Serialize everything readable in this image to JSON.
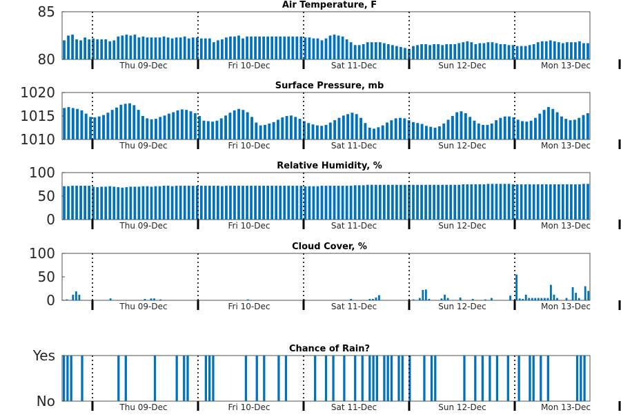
{
  "bar_color": "#0072bd",
  "day_labels": [
    "Thu 09-Dec",
    "Fri 10-Dec",
    "Sat 11-Dec",
    "Sun 12-Dec",
    "Mon 13-Dec"
  ],
  "chart_data": [
    {
      "type": "bar",
      "title": "Air Temperature, F",
      "x_unit": "hour index (3-hourly steps)",
      "ylim": [
        80,
        85
      ],
      "yticks": [
        "80",
        "85"
      ],
      "values": [
        82.0,
        82.5,
        82.6,
        82.1,
        82.0,
        82.3,
        82.1,
        82.2,
        82.1,
        82.1,
        82.1,
        81.9,
        82.0,
        82.4,
        82.5,
        82.6,
        82.5,
        82.6,
        82.3,
        82.4,
        82.3,
        82.3,
        82.3,
        82.3,
        82.4,
        82.3,
        82.2,
        82.3,
        82.3,
        82.4,
        82.2,
        82.3,
        82.3,
        82.2,
        82.2,
        82.2,
        81.8,
        82.0,
        82.1,
        82.3,
        82.4,
        82.4,
        82.5,
        82.2,
        82.4,
        82.4,
        82.4,
        82.4,
        82.4,
        82.4,
        82.4,
        82.4,
        82.4,
        82.4,
        82.4,
        82.4,
        82.4,
        82.4,
        82.3,
        82.3,
        82.2,
        82.2,
        82.0,
        82.2,
        82.5,
        82.6,
        82.5,
        82.4,
        82.1,
        81.8,
        81.5,
        81.5,
        81.6,
        81.8,
        81.8,
        81.8,
        81.8,
        81.7,
        81.6,
        81.5,
        81.4,
        81.3,
        81.2,
        81.1,
        81.4,
        81.5,
        81.6,
        81.6,
        81.5,
        81.6,
        81.6,
        81.5,
        81.6,
        81.6,
        81.6,
        81.7,
        81.8,
        81.9,
        81.8,
        81.6,
        81.7,
        81.7,
        81.8,
        81.8,
        81.7,
        81.6,
        81.6,
        81.5,
        81.5,
        81.4,
        81.4,
        81.4,
        81.5,
        81.6,
        81.8,
        81.9,
        81.9,
        82.0,
        81.9,
        81.8,
        81.7,
        81.8,
        81.8,
        81.8,
        81.9,
        81.7,
        81.7
      ]
    },
    {
      "type": "bar",
      "title": "Surface Pressure, mb",
      "ylim": [
        1010,
        1020
      ],
      "yticks": [
        "1010",
        "1015",
        "1020"
      ],
      "values": [
        1016.7,
        1016.9,
        1016.7,
        1016.5,
        1016.2,
        1015.5,
        1014.8,
        1014.7,
        1014.9,
        1015.2,
        1015.7,
        1016.3,
        1016.8,
        1017.4,
        1017.6,
        1017.7,
        1017.3,
        1016.3,
        1015.0,
        1014.5,
        1014.3,
        1014.4,
        1014.8,
        1015.1,
        1015.5,
        1015.8,
        1016.2,
        1016.4,
        1016.3,
        1016.0,
        1015.6,
        1015.0,
        1014.0,
        1013.9,
        1013.8,
        1014.0,
        1014.5,
        1015.1,
        1015.7,
        1016.2,
        1016.5,
        1016.3,
        1015.8,
        1014.8,
        1013.6,
        1013.0,
        1013.1,
        1013.4,
        1013.7,
        1014.2,
        1014.7,
        1015.0,
        1015.1,
        1014.8,
        1014.4,
        1013.9,
        1013.5,
        1013.2,
        1013.0,
        1012.9,
        1013.1,
        1013.6,
        1014.1,
        1014.6,
        1015.1,
        1015.4,
        1015.7,
        1015.4,
        1014.6,
        1013.5,
        1012.5,
        1012.3,
        1012.6,
        1013.0,
        1013.6,
        1014.1,
        1014.5,
        1014.6,
        1014.5,
        1014.1,
        1013.7,
        1013.5,
        1013.3,
        1012.9,
        1012.7,
        1012.5,
        1012.8,
        1013.4,
        1014.2,
        1015.0,
        1015.8,
        1016.0,
        1015.6,
        1014.8,
        1014.0,
        1013.4,
        1013.1,
        1013.1,
        1013.4,
        1014.1,
        1014.6,
        1014.9,
        1014.9,
        1014.7,
        1014.2,
        1013.9,
        1013.8,
        1014.0,
        1014.6,
        1015.5,
        1016.3,
        1016.9,
        1016.5,
        1015.8,
        1014.9,
        1014.4,
        1014.1,
        1014.2,
        1014.6,
        1015.2,
        1015.6
      ]
    },
    {
      "type": "bar",
      "title": "Relative Humidity, %",
      "ylim": [
        0,
        100
      ],
      "yticks": [
        "0",
        "50",
        "100"
      ],
      "values": [
        71,
        71,
        72,
        72,
        72,
        72,
        72,
        70,
        69,
        70,
        70,
        71,
        70,
        69,
        68,
        69,
        70,
        70,
        70,
        71,
        71,
        70,
        71,
        71,
        72,
        72,
        71,
        72,
        72,
        72,
        72,
        72,
        72,
        72,
        72,
        72,
        72,
        72,
        71,
        72,
        72,
        72,
        72,
        72,
        72,
        72,
        72,
        72,
        72,
        72,
        72,
        72,
        72,
        72,
        72,
        72,
        72,
        72,
        71,
        71,
        71,
        71,
        72,
        72,
        72,
        72,
        72,
        72,
        72,
        72,
        73,
        73,
        73,
        74,
        74,
        74,
        74,
        74,
        74,
        74,
        74,
        74,
        74,
        74,
        74,
        74,
        74,
        74,
        74,
        74,
        74,
        74,
        74,
        74,
        74,
        74,
        75,
        75,
        75,
        75,
        75,
        75,
        76,
        76,
        76,
        76,
        76,
        76,
        75,
        75,
        75,
        75,
        75,
        75,
        75,
        75,
        75,
        75,
        75,
        75,
        75,
        75,
        75,
        75,
        75,
        76,
        76
      ]
    },
    {
      "type": "bar",
      "title": "Cloud Cover, %",
      "ylim": [
        0,
        100
      ],
      "yticks": [
        "0",
        "50",
        "100"
      ],
      "values": [
        0,
        2,
        0,
        12,
        19,
        12,
        0,
        0,
        0,
        0,
        0,
        0,
        0,
        0,
        0,
        4,
        0,
        0,
        0,
        0,
        0,
        0,
        0,
        0,
        0,
        0,
        3,
        0,
        4,
        4,
        0,
        2,
        0,
        0,
        0,
        0,
        0,
        0,
        0,
        0,
        0,
        0,
        0,
        0,
        0,
        0,
        0,
        0,
        0,
        0,
        0,
        0,
        0,
        0,
        0,
        0,
        0,
        0,
        0,
        2,
        0,
        0,
        0,
        0,
        0,
        0,
        0,
        0,
        0,
        0,
        0,
        0,
        0,
        0,
        0,
        0,
        0,
        2,
        0,
        0,
        0,
        0,
        0,
        0,
        0,
        0,
        0,
        0,
        0,
        0,
        0,
        0,
        3,
        0,
        0,
        0,
        0,
        0,
        3,
        3,
        6,
        11,
        0,
        0,
        0,
        0,
        0,
        0,
        0,
        0,
        0,
        0,
        2,
        0,
        5,
        22,
        23,
        3,
        0,
        0,
        0,
        4,
        12,
        5,
        0,
        0,
        0,
        6,
        0,
        0,
        0,
        3,
        0,
        0,
        0,
        2,
        0,
        5,
        0,
        0,
        0,
        0,
        0,
        10,
        0,
        55,
        4,
        3,
        12,
        5,
        5,
        5,
        5,
        5,
        5,
        5,
        33,
        12,
        5,
        0,
        0,
        5,
        0,
        28,
        16,
        5,
        0,
        30,
        20
      ]
    },
    {
      "type": "bar",
      "title": "Chance of Rain?",
      "yticks": [
        "No",
        "Yes"
      ],
      "values": [
        1,
        1,
        1,
        0,
        0,
        1,
        0,
        0,
        0,
        0,
        0,
        0,
        0,
        0,
        0,
        1,
        0,
        1,
        0,
        0,
        0,
        0,
        0,
        0,
        0,
        1,
        0,
        0,
        0,
        0,
        0,
        1,
        0,
        1,
        1,
        0,
        0,
        0,
        0,
        1,
        1,
        1,
        0,
        0,
        0,
        0,
        0,
        0,
        0,
        0,
        1,
        0,
        0,
        1,
        0,
        1,
        0,
        0,
        0,
        1,
        0,
        1,
        0,
        0,
        0,
        0,
        0,
        0,
        0,
        1,
        0,
        0,
        1,
        0,
        1,
        0,
        0,
        1,
        0,
        0,
        1,
        0,
        1,
        0,
        1,
        1,
        1,
        0,
        1,
        1,
        1,
        0,
        1,
        1,
        0,
        1,
        0,
        0,
        0,
        1,
        0,
        1,
        1,
        0,
        0,
        0,
        0,
        0,
        0,
        0,
        1,
        0,
        0,
        1,
        0,
        1,
        0,
        1,
        0,
        1,
        0,
        0,
        1,
        0,
        0,
        1,
        0,
        0,
        1,
        1,
        0,
        1,
        0,
        1,
        0,
        0,
        0,
        0,
        0,
        0,
        0,
        1,
        1,
        1,
        0
      ]
    }
  ]
}
